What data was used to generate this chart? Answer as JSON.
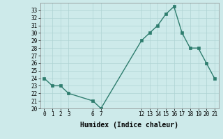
{
  "x": [
    0,
    1,
    2,
    3,
    6,
    7,
    12,
    13,
    14,
    15,
    16,
    17,
    18,
    19,
    20,
    21
  ],
  "y": [
    24,
    23,
    23,
    22,
    21,
    20,
    29,
    30,
    31,
    32.5,
    33.5,
    30,
    28,
    28,
    26,
    24
  ],
  "xlabel": "Humidex (Indice chaleur)",
  "xlim": [
    -0.5,
    21.5
  ],
  "ylim": [
    20,
    34
  ],
  "xticks": [
    0,
    1,
    2,
    3,
    6,
    7,
    12,
    13,
    14,
    15,
    16,
    17,
    18,
    19,
    20,
    21
  ],
  "yticks": [
    20,
    21,
    22,
    23,
    24,
    25,
    26,
    27,
    28,
    29,
    30,
    31,
    32,
    33
  ],
  "line_color": "#2e7d6e",
  "marker_color": "#2e7d6e",
  "bg_color": "#cdeaea",
  "grid_color": "#afd4d4",
  "axis_label_fontsize": 7,
  "tick_fontsize": 5.5,
  "line_width": 1.0,
  "marker_size": 2.5
}
